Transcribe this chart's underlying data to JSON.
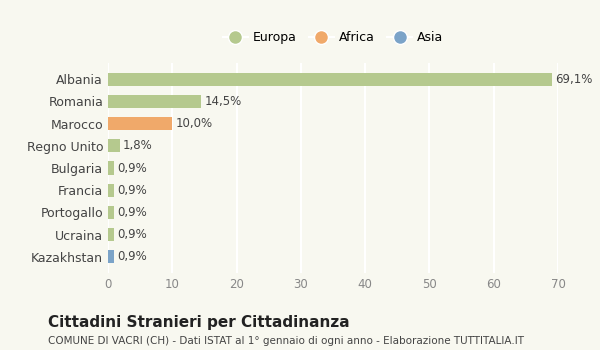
{
  "categories": [
    "Albania",
    "Romania",
    "Marocco",
    "Regno Unito",
    "Bulgaria",
    "Francia",
    "Portogallo",
    "Ucraina",
    "Kazakhstan"
  ],
  "values": [
    69.1,
    14.5,
    10.0,
    1.8,
    0.9,
    0.9,
    0.9,
    0.9,
    0.9
  ],
  "labels": [
    "69,1%",
    "14,5%",
    "10,0%",
    "1,8%",
    "0,9%",
    "0,9%",
    "0,9%",
    "0,9%",
    "0,9%"
  ],
  "colors": [
    "#b5c98e",
    "#b5c98e",
    "#f0a96a",
    "#b5c98e",
    "#b5c98e",
    "#b5c98e",
    "#b5c98e",
    "#b5c98e",
    "#7ba3c8"
  ],
  "legend": [
    {
      "label": "Europa",
      "color": "#b5c98e"
    },
    {
      "label": "Africa",
      "color": "#f0a96a"
    },
    {
      "label": "Asia",
      "color": "#7ba3c8"
    }
  ],
  "xlim": [
    0,
    70
  ],
  "xticks": [
    0,
    10,
    20,
    30,
    40,
    50,
    60,
    70
  ],
  "title": "Cittadini Stranieri per Cittadinanza",
  "subtitle": "COMUNE DI VACRI (CH) - Dati ISTAT al 1° gennaio di ogni anno - Elaborazione TUTTITALIA.IT",
  "background_color": "#f8f8f0",
  "grid_color": "#ffffff",
  "bar_height": 0.6
}
